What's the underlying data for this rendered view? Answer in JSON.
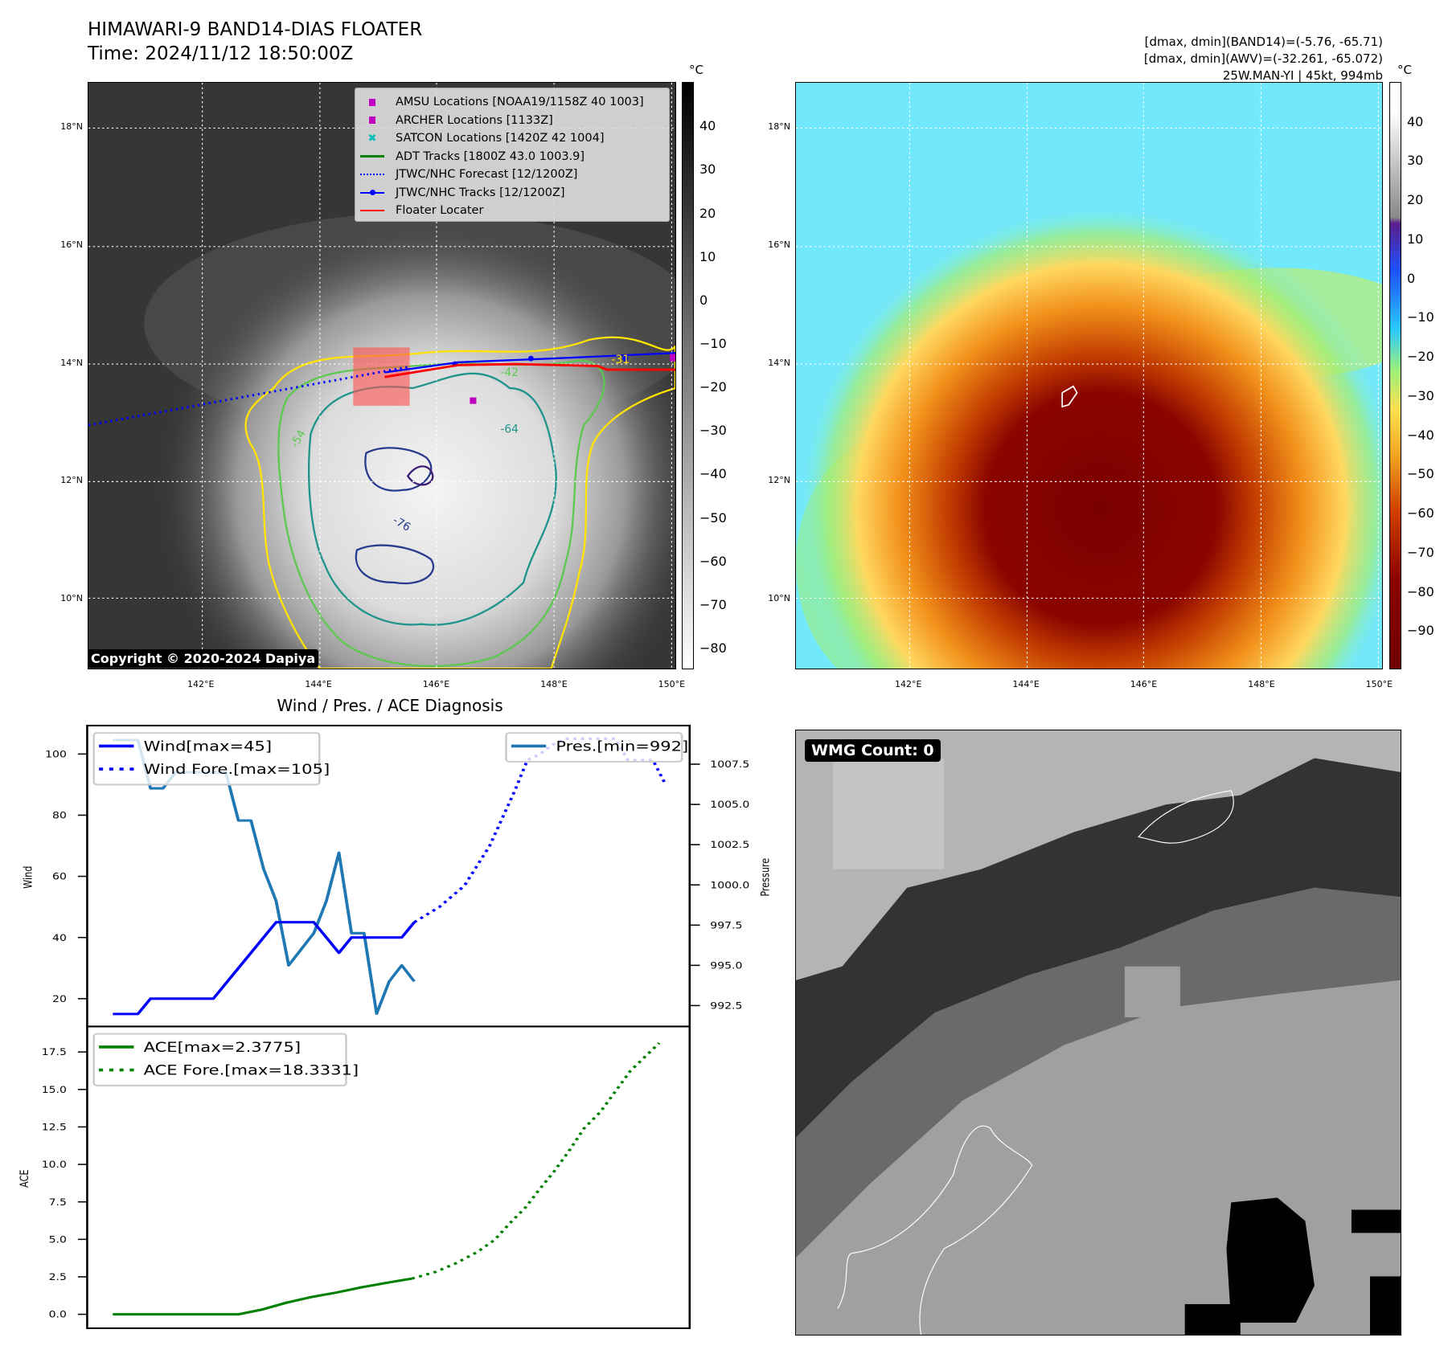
{
  "header": {
    "title": "HIMAWARI-9 BAND14-DIAS FLOATER",
    "time": "Time: 2024/11/12 18:50:00Z",
    "info": [
      "[dmax, dmin](BAND14)=(-5.76, -65.71)",
      "[dmax, dmin](AWV)=(-32.261, -65.072)",
      "25W.MAN-YI | 45kt, 994mb"
    ]
  },
  "maps": {
    "unit": "°C",
    "lon_ticks": [
      {
        "v": 142,
        "label": "142°E"
      },
      {
        "v": 144,
        "label": "144°E"
      },
      {
        "v": 146,
        "label": "146°E"
      },
      {
        "v": 148,
        "label": "148°E"
      },
      {
        "v": 150,
        "label": "150°E"
      }
    ],
    "lat_ticks": [
      {
        "v": 18,
        "label": "18°N"
      },
      {
        "v": 16,
        "label": "16°N"
      },
      {
        "v": 14,
        "label": "14°N"
      },
      {
        "v": 12,
        "label": "12°N"
      },
      {
        "v": 10,
        "label": "10°N"
      }
    ],
    "ir_colorbar_ticks": [
      40,
      30,
      20,
      10,
      0,
      -10,
      -20,
      -30,
      -40,
      -50,
      -60,
      -70,
      -80
    ],
    "awv_colorbar_ticks": [
      40,
      30,
      20,
      10,
      0,
      -10,
      -20,
      -30,
      -40,
      -50,
      -60,
      -70,
      -80,
      -90
    ],
    "legend": [
      {
        "label": "AMSU Locations [NOAA19/1158Z 40 1003]",
        "color": "#c000c0",
        "symbol": "square"
      },
      {
        "label": "ARCHER Locations [1133Z]",
        "color": "#c000c0",
        "symbol": "square"
      },
      {
        "label": "SATCON Locations [1420Z 42 1004]",
        "color": "#00bfbf",
        "symbol": "x"
      },
      {
        "label": "ADT Tracks [1800Z 43.0 1003.9]",
        "color": "#008000",
        "symbol": "line"
      },
      {
        "label": "JTWC/NHC Forecast [12/1200Z]",
        "color": "#0000ff",
        "symbol": "dotted"
      },
      {
        "label": "JTWC/NHC Tracks [12/1200Z]",
        "color": "#0000ff",
        "symbol": "line-dot"
      },
      {
        "label": "Floater Locater",
        "color": "#ff0000",
        "symbol": "line"
      }
    ],
    "contour_labels": [
      "-31",
      "-42",
      "-54",
      "-64",
      "-76"
    ],
    "copyright": "Copyright © 2020-2024 Dapiya"
  },
  "wmg": {
    "label": "WMG Count: 0"
  },
  "diagnosis_title": "Wind / Pres. / ACE Diagnosis",
  "chart_data": [
    {
      "type": "line",
      "title": "Wind / Pres. / ACE Diagnosis",
      "ylabel": "Wind",
      "y2label": "Pressure",
      "ylim": [
        10.9,
        109.3
      ],
      "y2lim": [
        991.2,
        1009.9
      ],
      "yticks": [
        20,
        40,
        60,
        80,
        100
      ],
      "y2ticks": [
        "992.5",
        "995.0",
        "997.5",
        "1000.0",
        "1002.5",
        "1005.0",
        "1007.5"
      ],
      "series": [
        {
          "name": "Wind[max=45]",
          "color": "#0000ff",
          "style": "solid",
          "axis": "left",
          "x": [
            0,
            1,
            2,
            3,
            4,
            5,
            6,
            7,
            8,
            9,
            10,
            11,
            12,
            13,
            14,
            15,
            16,
            17,
            18,
            19,
            20,
            21,
            22,
            23,
            24
          ],
          "values": [
            15,
            15,
            15,
            20,
            20,
            20,
            20,
            20,
            20,
            25,
            30,
            35,
            40,
            45,
            45,
            45,
            45,
            40,
            35,
            40,
            40,
            40,
            40,
            40,
            45
          ]
        },
        {
          "name": "Wind Fore.[max=105]",
          "color": "#0000ff",
          "style": "dotted",
          "axis": "left",
          "x": [
            24,
            26,
            28,
            30,
            32,
            33,
            34,
            35,
            36,
            38,
            40,
            41,
            43,
            44
          ],
          "values": [
            45,
            50,
            57,
            70,
            88,
            98,
            100,
            103,
            105,
            105,
            105,
            98,
            98,
            90
          ]
        },
        {
          "name": "Pres.[min=992]",
          "color": "#1f77b4",
          "style": "solid",
          "axis": "right",
          "x": [
            0,
            2,
            3,
            4,
            5,
            9,
            10,
            11,
            12,
            13,
            14,
            16,
            17,
            18,
            19,
            20,
            21,
            22,
            23,
            24
          ],
          "values": [
            1009,
            1009,
            1006,
            1006,
            1007,
            1007,
            1004,
            1004,
            1001,
            999,
            995,
            997,
            999,
            1002,
            997,
            997,
            992,
            994,
            995,
            994
          ]
        }
      ]
    },
    {
      "type": "line",
      "ylabel": "ACE",
      "ylim": [
        -0.93,
        19.2
      ],
      "yticks": [
        "0.0",
        "2.5",
        "5.0",
        "7.5",
        "10.0",
        "12.5",
        "15.0",
        "17.5"
      ],
      "series": [
        {
          "name": "ACE[max=2.3775]",
          "color": "#008000",
          "style": "solid",
          "x": [
            0,
            10,
            11.8,
            13.8,
            15.8,
            17.8,
            19.8,
            21.8,
            23.8
          ],
          "values": [
            0,
            0,
            0.3,
            0.77,
            1.15,
            1.45,
            1.8,
            2.1,
            2.38
          ]
        },
        {
          "name": "ACE Fore.[max=18.3331]",
          "color": "#008000",
          "style": "dotted",
          "x": [
            23.8,
            25.7,
            27.3,
            29,
            30.4,
            31.6,
            32.9,
            33.9,
            35.1,
            36.3,
            37.5,
            38.8,
            40,
            41.2,
            43.5
          ],
          "values": [
            2.38,
            2.83,
            3.4,
            4.15,
            4.97,
            6.07,
            7.17,
            8.27,
            9.5,
            10.88,
            12.39,
            13.49,
            14.86,
            16.24,
            18.1
          ]
        }
      ]
    }
  ]
}
